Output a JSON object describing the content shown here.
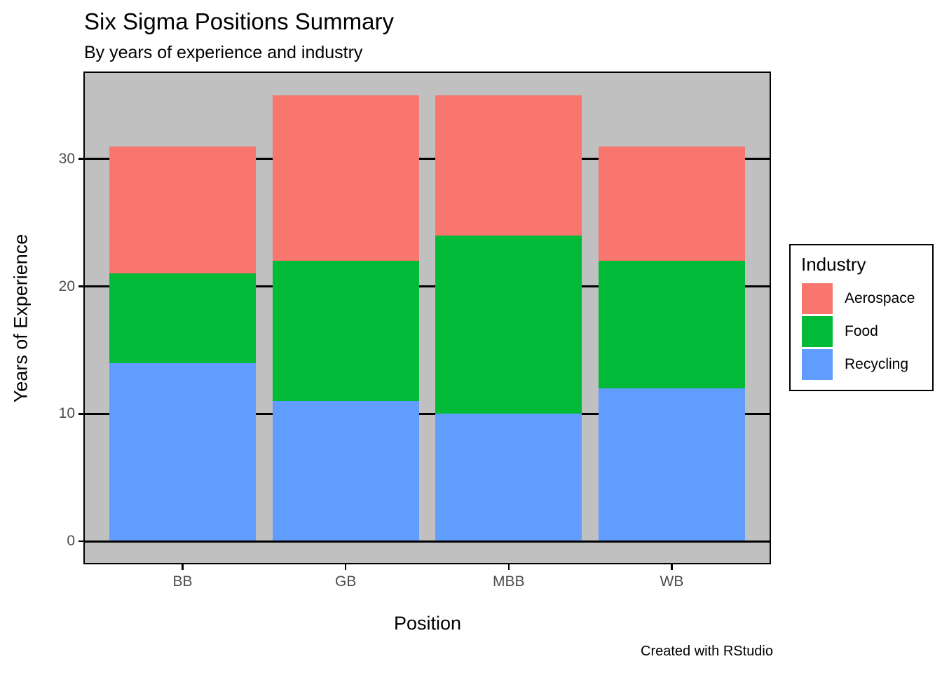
{
  "title": "Six Sigma Positions Summary",
  "subtitle": "By years of experience and industry",
  "caption": "Created with RStudio",
  "x_axis": {
    "title": "Position",
    "tick_labels": [
      "BB",
      "GB",
      "MBB",
      "WB"
    ]
  },
  "y_axis": {
    "title": "Years of Experience",
    "tick_labels": [
      "0",
      "10",
      "20",
      "30"
    ]
  },
  "legend": {
    "title": "Industry",
    "entries": [
      {
        "label": "Aerospace",
        "color": "#F8766D"
      },
      {
        "label": "Food",
        "color": "#00BA38"
      },
      {
        "label": "Recycling",
        "color": "#619CFF"
      }
    ]
  },
  "colors": {
    "panel_background": "#C0C0C0",
    "panel_border": "#000000",
    "gridline": "#000000",
    "tick_label": "#4D4D4D",
    "aerospace_red": "#F8766D",
    "food_green": "#00BA38",
    "recycling_blue": "#619CFF"
  },
  "chart_data": {
    "type": "bar",
    "stacked": true,
    "title": "Six Sigma Positions Summary",
    "subtitle": "By years of experience and industry",
    "xlabel": "Position",
    "ylabel": "Years of Experience",
    "categories": [
      "BB",
      "GB",
      "MBB",
      "WB"
    ],
    "series": [
      {
        "name": "Recycling",
        "color": "#619CFF",
        "values": [
          14,
          11,
          10,
          12
        ]
      },
      {
        "name": "Food",
        "color": "#00BA38",
        "values": [
          7,
          11,
          14,
          10
        ]
      },
      {
        "name": "Aerospace",
        "color": "#F8766D",
        "values": [
          10,
          13,
          11,
          9
        ]
      }
    ],
    "stack_totals": [
      31,
      35,
      35,
      31
    ],
    "y_breaks": [
      0,
      10,
      20,
      30
    ],
    "ylim": [
      -1.75,
      36.75
    ],
    "bar_width_fraction": 0.9,
    "legend_position": "right",
    "grid": "horizontal major gridlines, black, drawn behind bars"
  }
}
